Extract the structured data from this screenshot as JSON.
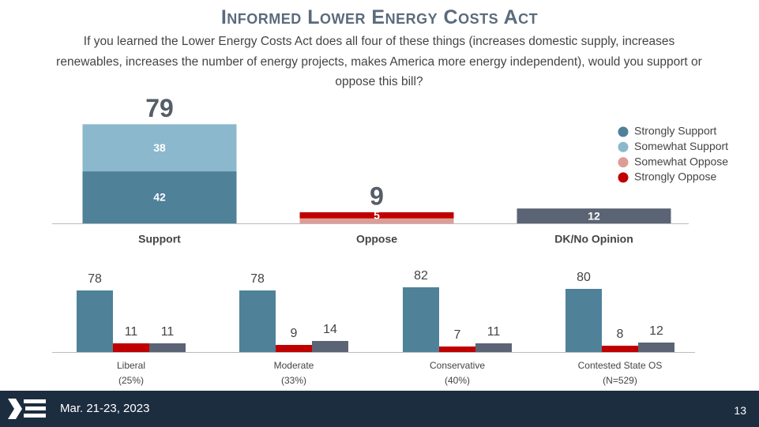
{
  "header": {
    "title": "Informed Lower Energy Costs Act",
    "subtitle": "If you learned the Lower Energy Costs Act does all four of these things (increases domestic supply, increases renewables, increases the number of energy projects, makes America more energy independent), would you support or oppose this bill?"
  },
  "chart_data": [
    {
      "type": "stacked_bar",
      "categories": [
        "Support",
        "Oppose",
        "DK/No Opinion"
      ],
      "totals": [
        79,
        9,
        null
      ],
      "series": [
        {
          "name": "Strongly Support",
          "color": "#4f8199",
          "values": [
            42,
            null,
            null
          ]
        },
        {
          "name": "Somewhat Support",
          "color": "#8bb8cc",
          "values": [
            38,
            null,
            null
          ]
        },
        {
          "name": "Somewhat Oppose",
          "color": "#dd9d96",
          "values": [
            null,
            4,
            null
          ],
          "labels": false
        },
        {
          "name": "Strongly Oppose",
          "color": "#c00000",
          "values": [
            null,
            5,
            null
          ]
        },
        {
          "color": "#5b6474",
          "values": [
            null,
            null,
            12
          ]
        }
      ],
      "legend": "top-right"
    },
    {
      "type": "grouped_bar",
      "categories": [
        "Liberal",
        "Moderate",
        "Conservative",
        "Contested State OS"
      ],
      "category_notes": [
        "(25%)",
        "(33%)",
        "(40%)",
        "(N=529)"
      ],
      "series": [
        {
          "color": "#4f8199",
          "values": [
            78,
            78,
            82,
            80
          ]
        },
        {
          "color": "#c00000",
          "values": [
            11,
            9,
            7,
            8
          ]
        },
        {
          "color": "#5b6474",
          "values": [
            11,
            14,
            11,
            12
          ]
        }
      ]
    }
  ],
  "footer": {
    "date": "Mar. 21-23, 2023",
    "page": "13"
  }
}
